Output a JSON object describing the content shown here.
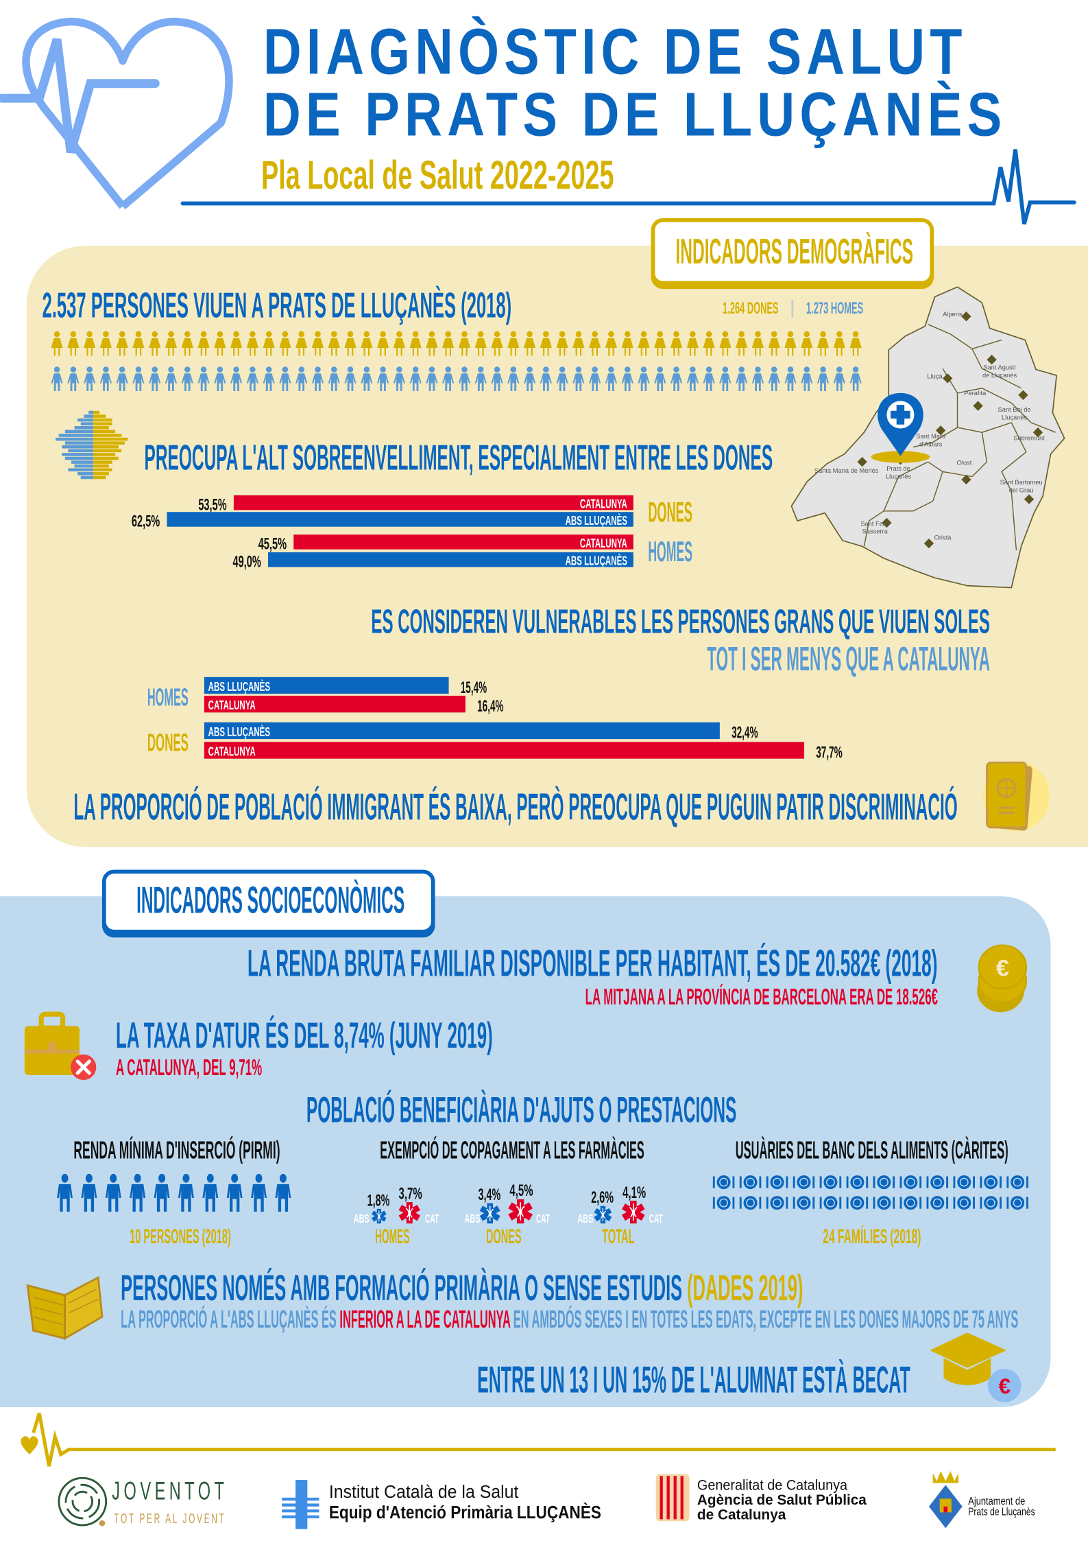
{
  "header": {
    "title_line1": "DIAGNÒSTIC DE SALUT",
    "title_line2": "DE PRATS DE LLUÇANÈS",
    "subtitle": "Pla Local de Salut 2022-2025"
  },
  "colors": {
    "blue": "#0a66bf",
    "light_blue": "#5b9bd5",
    "gold": "#d6b100",
    "red": "#e2002a",
    "demographic_bg": "#f6ebc0",
    "socioeconomic_bg": "#bfdaef"
  },
  "demographics": {
    "section_label": "INDICADORS DEMOGRÀFICS",
    "population_heading": "2.537 PERSONES VIUEN A PRATS DE LLUÇANÈS (2018)",
    "women_count": "1.264 DONES",
    "men_count": "1.273 HOMES",
    "aging_heading": "PREOCUPA L'ALT SOBREENVELLIMENT, ESPECIALMENT ENTRE LES DONES",
    "aging_chart": {
      "groups": [
        {
          "label": "DONES",
          "bars": [
            {
              "series": "CATALUNYA",
              "value": 53.5,
              "label": "53,5%"
            },
            {
              "series": "ABS LLUÇANÈS",
              "value": 62.5,
              "label": "62,5%"
            }
          ]
        },
        {
          "label": "HOMES",
          "bars": [
            {
              "series": "CATALUNYA",
              "value": 45.5,
              "label": "45,5%"
            },
            {
              "series": "ABS LLUÇANÈS",
              "value": 49.0,
              "label": "49,0%"
            }
          ]
        }
      ]
    },
    "alone_heading": "ES CONSIDEREN VULNERABLES LES PERSONES GRANS QUE VIUEN SOLES",
    "alone_subheading": "TOT I SER MENYS QUE  A CATALUNYA",
    "alone_chart": {
      "groups": [
        {
          "label": "HOMES",
          "bars": [
            {
              "series": "ABS LLUÇANÈS",
              "value": 15.4,
              "label": "15,4%"
            },
            {
              "series": "CATALUNYA",
              "value": 16.4,
              "label": "16,4%"
            }
          ]
        },
        {
          "label": "DONES",
          "bars": [
            {
              "series": "ABS LLUÇANÈS",
              "value": 32.4,
              "label": "32,4%"
            },
            {
              "series": "CATALUNYA",
              "value": 37.7,
              "label": "37,7%"
            }
          ]
        }
      ]
    },
    "immigration_text": "LA PROPORCIÓ DE POBLACIÓ IMMIGRANT ÉS BAIXA, PERÒ PREOCUPA QUE PUGUIN PATIR DISCRIMINACIÓ",
    "map_places": [
      "Alpens",
      "Sant Agustí de Lluçanès",
      "Lluçà",
      "Perafita",
      "Sant Boi de Lluçanès",
      "Sant Martí d'Albars",
      "Sobremunt",
      "Santa Maria de Merlès",
      "Prats de Lluçanès",
      "Olost",
      "Sant Bartomeu del Grau",
      "Sant Feliu Sasserra",
      "Oristà"
    ]
  },
  "socioeconomics": {
    "section_label": "INDICADORS SOCIOECONÒMICS",
    "income_heading": "LA RENDA BRUTA FAMILIAR  DISPONIBLE PER HABITANT, ÉS DE 20.582€ (2018)",
    "income_note": "LA MITJANA A LA PROVÍNCIA DE BARCELONA ERA DE 18.526€",
    "unemployment_heading": "LA TAXA D'ATUR ÉS DEL 8,74% (JUNY 2019)",
    "unemployment_note": "A CATALUNYA, DEL 9,71%",
    "benefits_heading": "POBLACIÓ BENEFICIÀRIA D'AJUTS O PRESTACIONS",
    "pirmi": {
      "title": "RENDA MÍNIMA D'INSERCIÓ (PIRMI)",
      "count": 10,
      "caption": "10 PERSONES (2018)"
    },
    "copay": {
      "title": "EXEMPCIÓ DE COPAGAMENT A LES FARMÀCIES",
      "abs_label": "ABS",
      "cat_label": "CAT",
      "groups": [
        {
          "label": "HOMES",
          "abs": 1.8,
          "abs_label": "1,8%",
          "cat": 3.7,
          "cat_label": "3,7%"
        },
        {
          "label": "DONES",
          "abs": 3.4,
          "abs_label": "3,4%",
          "cat": 4.5,
          "cat_label": "4,5%"
        },
        {
          "label": "TOTAL",
          "abs": 2.6,
          "abs_label": "2,6%",
          "cat": 4.1,
          "cat_label": "4,1%"
        }
      ]
    },
    "foodbank": {
      "title": "USUÀRIES DEL BANC DELS ALIMENTS (CÀRITES)",
      "count": 24,
      "caption": "24 FAMÍLIES (2018)"
    },
    "education_heading": "PERSONES NOMÉS AMB FORMACIÓ PRIMÀRIA O SENSE ESTUDIS",
    "education_year": " (DADES 2019)",
    "education_note_a": "LA PROPORCIÓ A L'ABS LLUÇANÈS ÉS ",
    "education_note_b": "INFERIOR A LA DE CATALUNYA",
    "education_note_c": " EN AMBDÓS SEXES I EN TOTES LES EDATS, EXCEPTE EN LES DONES MAJORS DE 75 ANYS",
    "scholarship_text": "ENTRE UN 13 I UN 15% DE L'ALUMNAT ESTÀ BECAT"
  },
  "footer": {
    "joventot": {
      "name": "JOVENTOT",
      "tagline": "TOT PER AL JOVENT"
    },
    "ics": {
      "line1": "Institut Català de la Salut",
      "line2": "Equip d'Atenció Primària LLUÇANÈS"
    },
    "gencat": {
      "line1": "Generalitat de Catalunya",
      "line2": "Agència de Salut Pública",
      "line3": "de Catalunya"
    },
    "ajuntament": {
      "line1": "Ajuntament de",
      "line2": "Prats de Lluçanès"
    }
  }
}
